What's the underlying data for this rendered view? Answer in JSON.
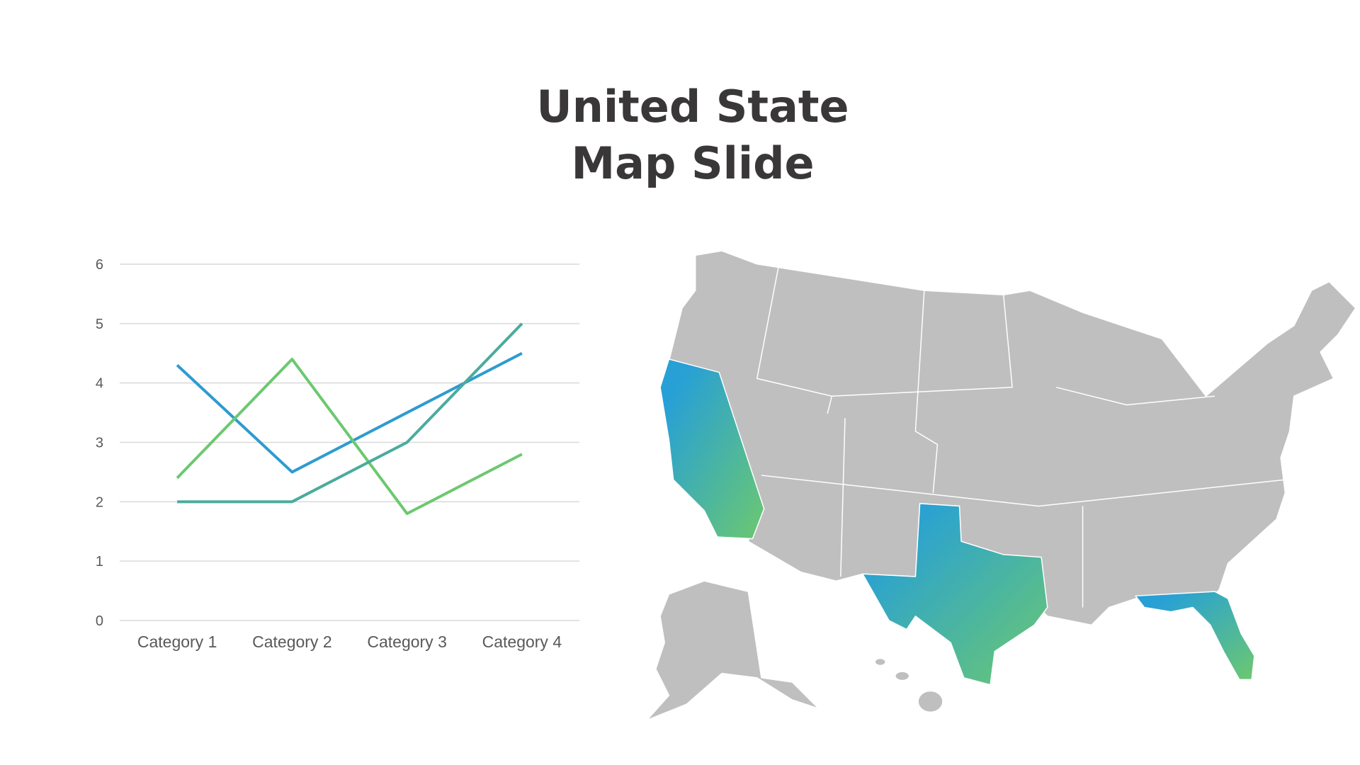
{
  "chart_data": {
    "type": "line",
    "title": [
      "United State",
      "Map Slide"
    ],
    "categories": [
      "Category 1",
      "Category 2",
      "Category 3",
      "Category 4"
    ],
    "series": [
      {
        "color": "#2e9bd0",
        "values": [
          4.3,
          2.5,
          3.5,
          4.5
        ]
      },
      {
        "color": "#6cc870",
        "values": [
          2.4,
          4.4,
          1.8,
          2.8
        ]
      },
      {
        "color": "#4aab9e",
        "values": [
          2,
          2,
          3,
          5
        ]
      }
    ],
    "ylim": [
      0,
      6
    ],
    "yticks": [
      0,
      1,
      2,
      3,
      4,
      5,
      6
    ],
    "grid": true
  }
}
